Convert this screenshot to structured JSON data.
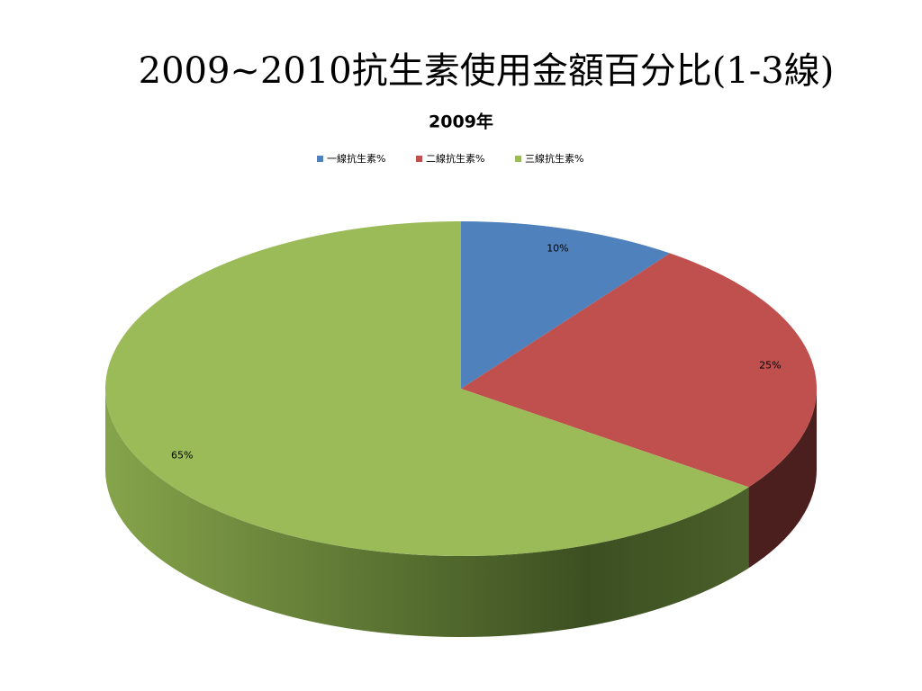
{
  "slide_title": "2009~2010抗生素使用金額百分比(1-3線)",
  "chart_data": {
    "type": "pie",
    "title": "2009年",
    "categories": [
      "一線抗生素%",
      "二線抗生素%",
      "三線抗生素%"
    ],
    "values": [
      10,
      25,
      65
    ],
    "value_labels": [
      "10%",
      "25%",
      "65%"
    ],
    "colors": [
      "#4f81bd",
      "#c0504d",
      "#9bbb59"
    ],
    "legend": "top"
  }
}
